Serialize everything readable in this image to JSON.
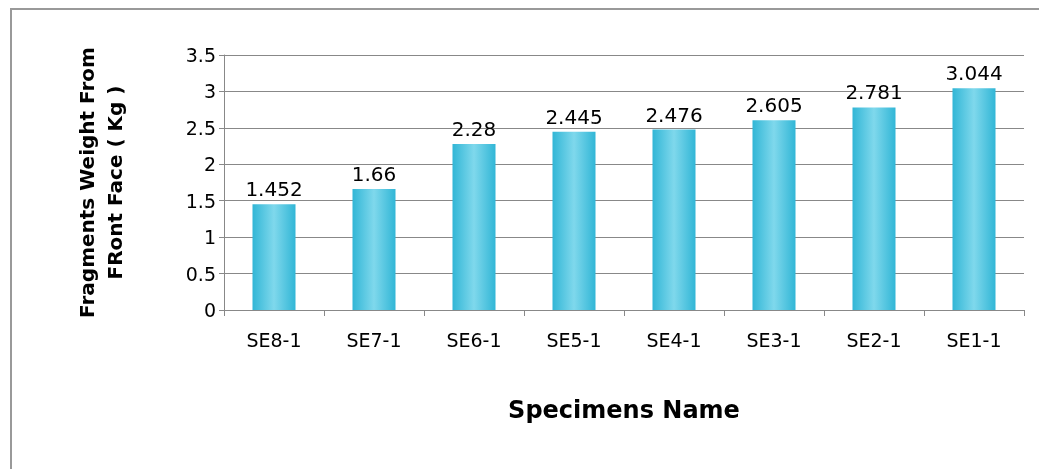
{
  "chart_data": {
    "type": "bar",
    "xlabel": "Specimens Name",
    "ylabel": "Fragments Weight From FRont Face ( Kg )",
    "categories": [
      "SE8-1",
      "SE7-1",
      "SE6-1",
      "SE5-1",
      "SE4-1",
      "SE3-1",
      "SE2-1",
      "SE1-1"
    ],
    "values": [
      1.452,
      1.66,
      2.28,
      2.445,
      2.476,
      2.605,
      2.781,
      3.044
    ],
    "color": "#31b6d6",
    "ylim": [
      0,
      3.5
    ],
    "yticks": [
      0,
      0.5,
      1,
      1.5,
      2,
      2.5,
      3,
      3.5
    ],
    "grid": "y",
    "data_labels": true
  }
}
